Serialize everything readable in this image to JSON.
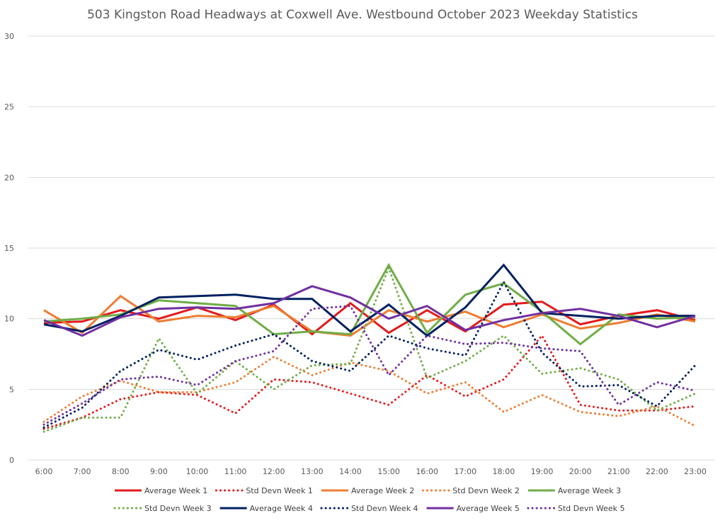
{
  "chart_data": {
    "type": "line",
    "title": "503 Kingston Road Headways at Coxwell Ave. Westbound October 2023 Weekday Statistics",
    "xlabel": "",
    "ylabel": "",
    "ylim": [
      0,
      30
    ],
    "yticks": [
      0,
      5,
      10,
      15,
      20,
      25,
      30
    ],
    "grid": true,
    "legend_position": "bottom",
    "categories": [
      "6:00",
      "7:00",
      "8:00",
      "9:00",
      "10:00",
      "11:00",
      "12:00",
      "13:00",
      "14:00",
      "15:00",
      "16:00",
      "17:00",
      "18:00",
      "19:00",
      "20:00",
      "21:00",
      "22:00",
      "23:00"
    ],
    "series": [
      {
        "name": "Average Week 1",
        "color": "#e31a1c",
        "style": "solid",
        "values": [
          9.7,
          9.8,
          10.6,
          10.0,
          10.8,
          9.9,
          11.0,
          8.9,
          11.1,
          9.0,
          10.6,
          9.1,
          11.0,
          11.2,
          9.6,
          10.2,
          10.6,
          9.9
        ]
      },
      {
        "name": "Std Devn Week 1",
        "color": "#e31a1c",
        "style": "dotted",
        "values": [
          2.2,
          3.0,
          4.3,
          4.8,
          4.6,
          3.3,
          5.7,
          5.5,
          4.7,
          3.9,
          6.0,
          4.5,
          5.7,
          8.8,
          3.9,
          3.5,
          3.5,
          3.8
        ]
      },
      {
        "name": "Average Week 2",
        "color": "#ed7d31",
        "style": "solid",
        "values": [
          10.6,
          9.0,
          11.6,
          9.8,
          10.2,
          10.1,
          10.9,
          9.1,
          8.8,
          10.6,
          9.8,
          10.5,
          9.4,
          10.3,
          9.3,
          9.7,
          10.3,
          9.8
        ]
      },
      {
        "name": "Std Devn Week 2",
        "color": "#ed7d31",
        "style": "dotted",
        "values": [
          2.7,
          4.5,
          5.6,
          4.8,
          4.8,
          5.5,
          7.3,
          6.0,
          6.9,
          6.3,
          4.7,
          5.5,
          3.4,
          4.6,
          3.4,
          3.1,
          3.8,
          2.4
        ]
      },
      {
        "name": "Average Week 3",
        "color": "#70ad47",
        "style": "solid",
        "values": [
          9.8,
          10.0,
          10.3,
          11.3,
          11.1,
          10.9,
          8.9,
          9.1,
          8.9,
          13.8,
          9.0,
          11.7,
          12.5,
          10.5,
          8.2,
          10.3,
          10.0,
          10.1
        ]
      },
      {
        "name": "Std Devn Week 3",
        "color": "#70ad47",
        "style": "dotted",
        "values": [
          2.0,
          3.0,
          3.0,
          8.6,
          4.7,
          7.0,
          5.0,
          6.7,
          6.8,
          13.6,
          5.8,
          7.0,
          8.8,
          6.1,
          6.5,
          5.7,
          3.5,
          4.7
        ]
      },
      {
        "name": "Average Week 4",
        "color": "#002060",
        "style": "solid",
        "values": [
          9.6,
          9.1,
          10.2,
          11.5,
          11.6,
          11.7,
          11.4,
          11.4,
          9.1,
          11.0,
          8.8,
          10.8,
          13.8,
          10.4,
          10.2,
          10.0,
          10.2,
          10.2
        ]
      },
      {
        "name": "Std Devn Week 4",
        "color": "#002060",
        "style": "dotted",
        "values": [
          2.3,
          3.7,
          6.3,
          7.8,
          7.1,
          8.1,
          8.9,
          7.0,
          6.3,
          8.8,
          7.9,
          7.4,
          12.6,
          7.6,
          5.2,
          5.3,
          3.8,
          6.7
        ]
      },
      {
        "name": "Average Week 5",
        "color": "#7030a0",
        "style": "solid",
        "values": [
          9.9,
          8.8,
          10.1,
          10.7,
          10.8,
          10.7,
          11.1,
          12.3,
          11.5,
          10.0,
          10.9,
          9.2,
          9.9,
          10.4,
          10.7,
          10.2,
          9.4,
          10.2
        ]
      },
      {
        "name": "Std Devn Week 5",
        "color": "#7030a0",
        "style": "dotted",
        "values": [
          2.5,
          4.0,
          5.7,
          5.9,
          5.3,
          7.0,
          7.7,
          10.7,
          10.9,
          6.0,
          8.8,
          8.2,
          8.3,
          7.9,
          7.7,
          3.9,
          5.5,
          4.9
        ]
      }
    ]
  }
}
